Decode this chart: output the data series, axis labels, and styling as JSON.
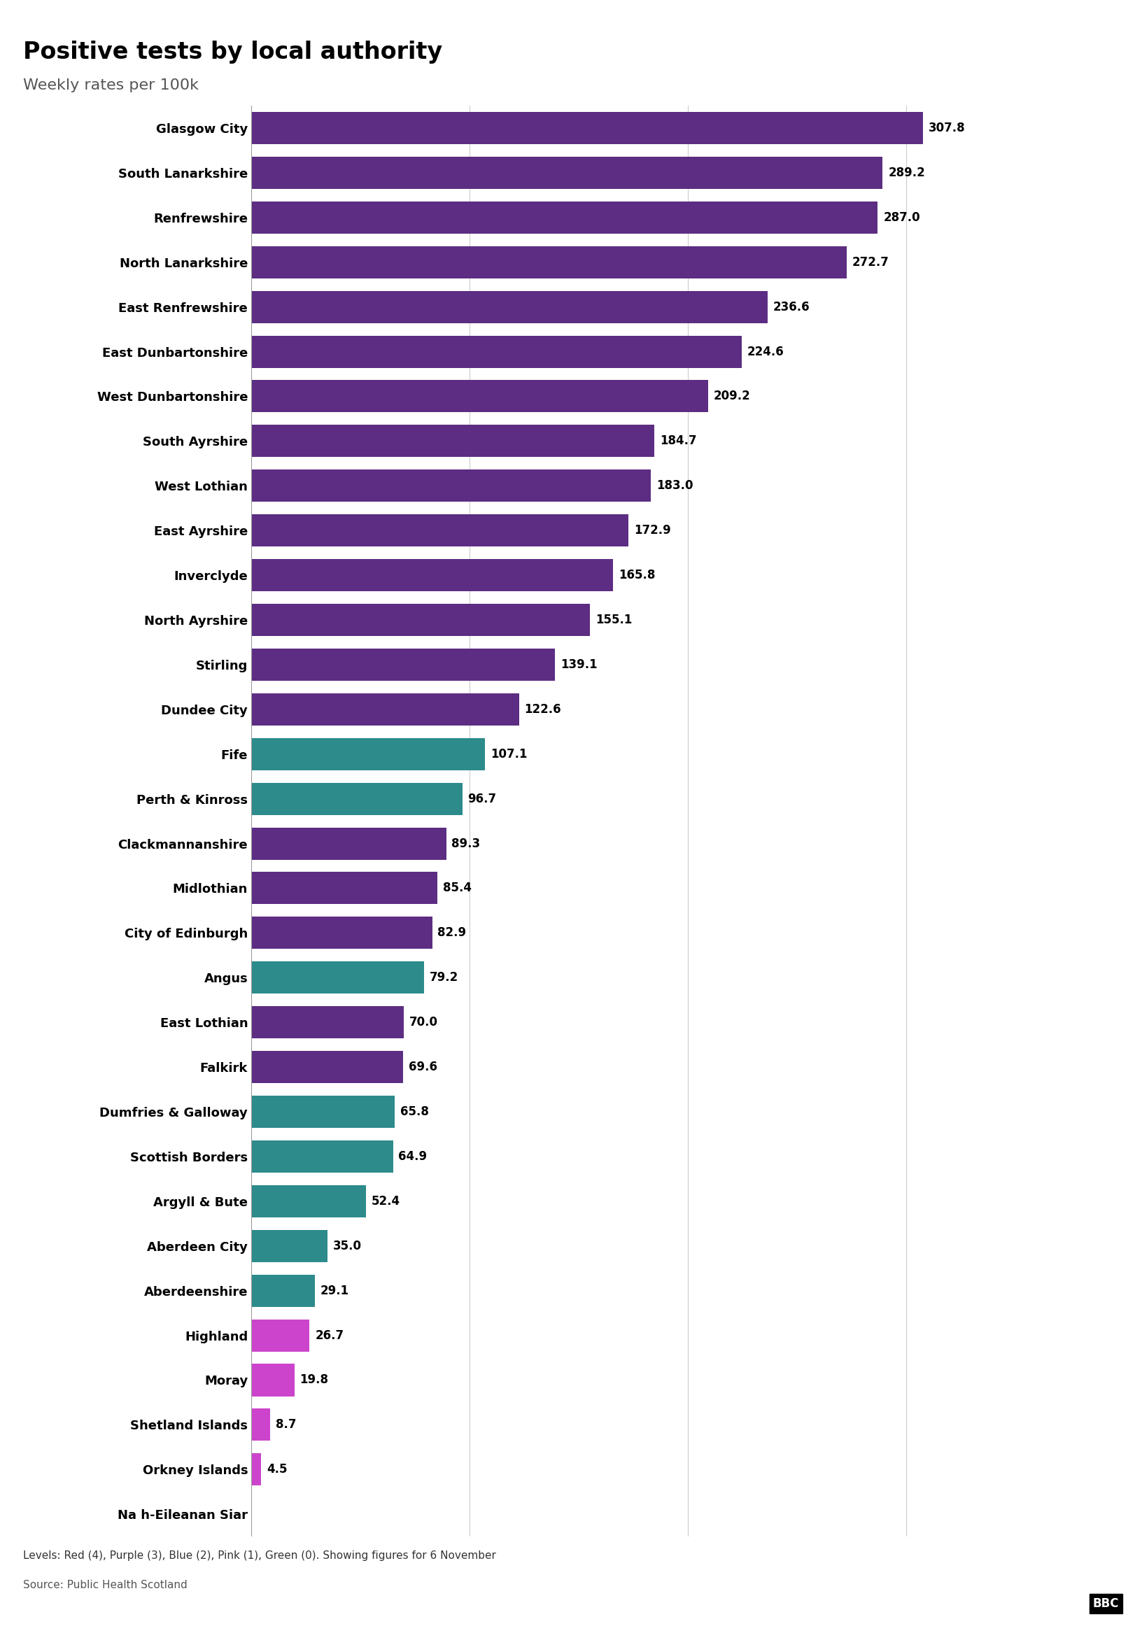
{
  "title": "Positive tests by local authority",
  "subtitle": "Weekly rates per 100k",
  "footer": "Levels: Red (4), Purple (3), Blue (2), Pink (1), Green (0). Showing figures for 6 November",
  "source": "Source: Public Health Scotland",
  "categories": [
    "Glasgow City",
    "South Lanarkshire",
    "Renfrewshire",
    "North Lanarkshire",
    "East Renfrewshire",
    "East Dunbartonshire",
    "West Dunbartonshire",
    "South Ayrshire",
    "West Lothian",
    "East Ayrshire",
    "Inverclyde",
    "North Ayrshire",
    "Stirling",
    "Dundee City",
    "Fife",
    "Perth & Kinross",
    "Clackmannanshire",
    "Midlothian",
    "City of Edinburgh",
    "Angus",
    "East Lothian",
    "Falkirk",
    "Dumfries & Galloway",
    "Scottish Borders",
    "Argyll & Bute",
    "Aberdeen City",
    "Aberdeenshire",
    "Highland",
    "Moray",
    "Shetland Islands",
    "Orkney Islands",
    "Na h-Eileanan Siar"
  ],
  "values": [
    307.8,
    289.2,
    287.0,
    272.7,
    236.6,
    224.6,
    209.2,
    184.7,
    183.0,
    172.9,
    165.8,
    155.1,
    139.1,
    122.6,
    107.1,
    96.7,
    89.3,
    85.4,
    82.9,
    79.2,
    70.0,
    69.6,
    65.8,
    64.9,
    52.4,
    35.0,
    29.1,
    26.7,
    19.8,
    8.7,
    4.5,
    0.0
  ],
  "colors": [
    "#5c2d82",
    "#5c2d82",
    "#5c2d82",
    "#5c2d82",
    "#5c2d82",
    "#5c2d82",
    "#5c2d82",
    "#5c2d82",
    "#5c2d82",
    "#5c2d82",
    "#5c2d82",
    "#5c2d82",
    "#5c2d82",
    "#5c2d82",
    "#2d8b8b",
    "#2d8b8b",
    "#5c2d82",
    "#5c2d82",
    "#5c2d82",
    "#2d8b8b",
    "#5c2d82",
    "#5c2d82",
    "#2d8b8b",
    "#2d8b8b",
    "#2d8b8b",
    "#2d8b8b",
    "#2d8b8b",
    "#cc44cc",
    "#cc44cc",
    "#cc44cc",
    "#cc44cc",
    "#5c2d82"
  ],
  "xlim": [
    0,
    340
  ],
  "bar_height": 0.72,
  "value_label_fontsize": 12,
  "ylabel_fontsize": 13,
  "title_fontsize": 24,
  "subtitle_fontsize": 16,
  "background_color": "#ffffff",
  "grid_color": "#cccccc"
}
